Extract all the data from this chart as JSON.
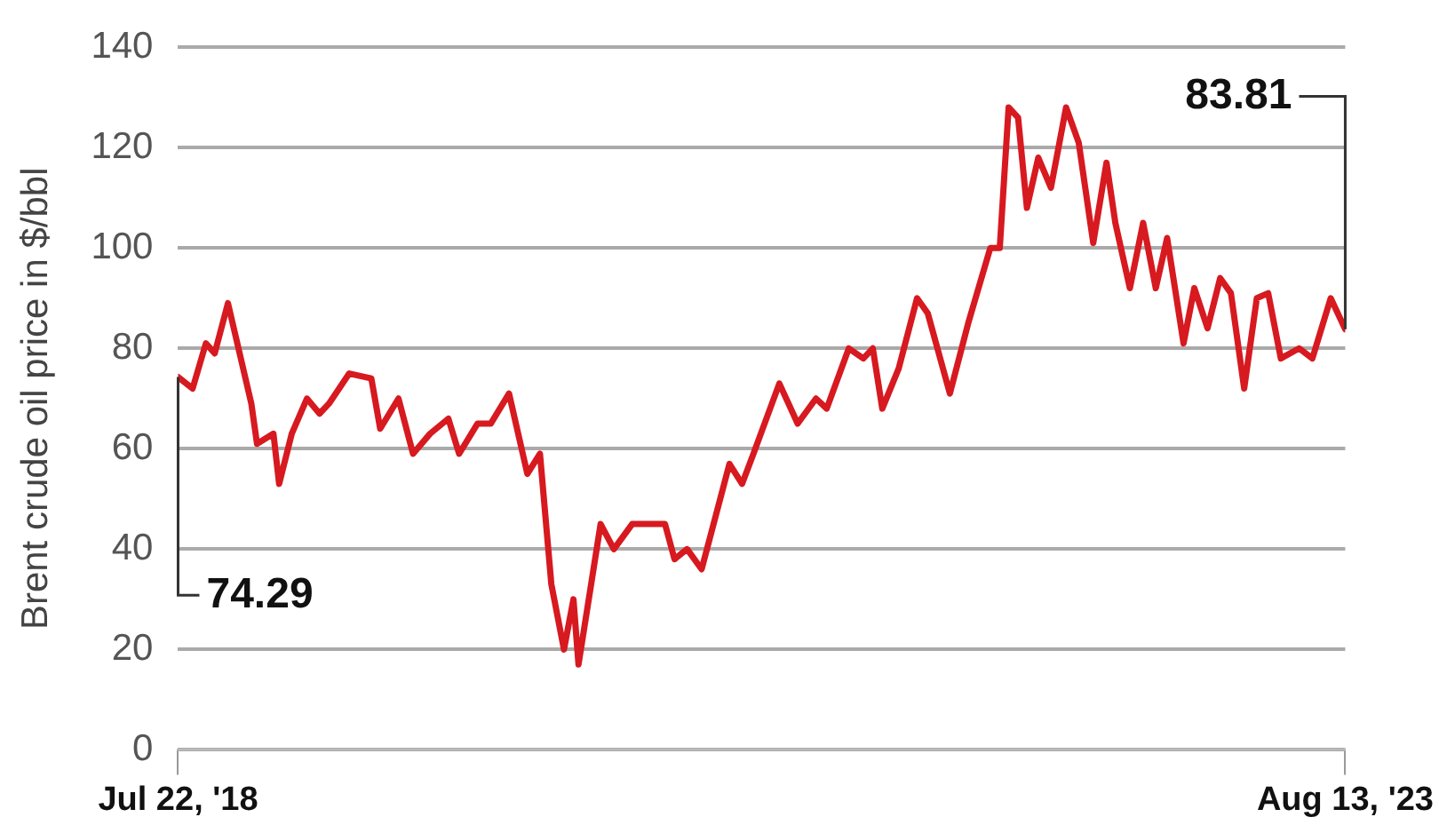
{
  "chart_data": {
    "type": "line",
    "ylabel": "Brent crude oil price in $/bbl",
    "x": [
      "2018-07-22",
      "2018-08-14",
      "2018-09-04",
      "2018-09-18",
      "2018-10-09",
      "2018-11-15",
      "2018-11-24",
      "2018-12-20",
      "2018-12-29",
      "2019-01-18",
      "2019-02-11",
      "2019-03-03",
      "2019-03-18",
      "2019-04-19",
      "2019-05-24",
      "2019-06-07",
      "2019-07-06",
      "2019-07-29",
      "2019-08-25",
      "2019-09-23",
      "2019-10-10",
      "2019-11-08",
      "2019-11-29",
      "2019-12-28",
      "2020-01-26",
      "2020-02-15",
      "2020-03-04",
      "2020-03-24",
      "2020-04-08",
      "2020-04-16",
      "2020-05-21",
      "2020-06-11",
      "2020-07-10",
      "2020-08-31",
      "2020-09-15",
      "2020-10-05",
      "2020-10-28",
      "2020-12-11",
      "2020-12-31",
      "2021-01-18",
      "2021-02-28",
      "2021-03-29",
      "2021-04-27",
      "2021-05-14",
      "2021-06-18",
      "2021-07-11",
      "2021-07-26",
      "2021-08-10",
      "2021-09-05",
      "2021-10-04",
      "2021-10-21",
      "2021-11-25",
      "2021-12-24",
      "2022-01-28",
      "2022-02-12",
      "2022-02-26",
      "2022-03-13",
      "2022-03-27",
      "2022-04-14",
      "2022-05-04",
      "2022-05-28",
      "2022-06-17",
      "2022-07-10",
      "2022-07-31",
      "2022-08-14",
      "2022-09-06",
      "2022-09-27",
      "2022-10-17",
      "2022-11-04",
      "2022-11-30",
      "2022-12-17",
      "2023-01-07",
      "2023-01-27",
      "2023-02-13",
      "2023-03-06",
      "2023-03-26",
      "2023-04-13",
      "2023-05-03",
      "2023-06-01",
      "2023-06-22",
      "2023-07-21",
      "2023-08-13"
    ],
    "series": [
      {
        "color": "#d71920",
        "values": [
          74.29,
          72,
          81,
          79,
          89,
          69,
          61,
          63,
          53,
          63,
          70,
          67,
          69,
          75,
          74,
          64,
          70,
          59,
          63,
          66,
          59,
          65,
          65,
          71,
          55,
          59,
          33,
          20,
          30,
          17,
          45,
          40,
          45,
          45,
          38,
          40,
          36,
          57,
          53,
          59,
          73,
          65,
          70,
          68,
          80,
          78,
          80,
          68,
          76,
          90,
          87,
          71,
          85,
          100,
          100,
          128,
          126,
          108,
          118,
          112,
          128,
          121,
          101,
          117,
          105,
          92,
          105,
          92,
          102,
          81,
          92,
          84,
          94,
          91,
          72,
          90,
          91,
          78,
          80,
          78,
          90,
          83.81
        ]
      }
    ],
    "xlim": [
      "2018-07-22",
      "2023-08-13"
    ],
    "xticks": [
      {
        "value": "2018-07-22",
        "label": "Jul 22, '18"
      },
      {
        "value": "2023-08-13",
        "label": "Aug 13, '23"
      }
    ],
    "ylim": [
      0,
      140
    ],
    "yticks": [
      0,
      20,
      40,
      60,
      80,
      100,
      120,
      140
    ],
    "grid": "y",
    "legend": false,
    "marker": "none",
    "line_style": "solid",
    "annotations": [
      {
        "text": "74.29",
        "x": "2018-07-22",
        "y": 74.29
      },
      {
        "text": "83.81",
        "x": "2023-08-13",
        "y": 83.81
      }
    ]
  }
}
